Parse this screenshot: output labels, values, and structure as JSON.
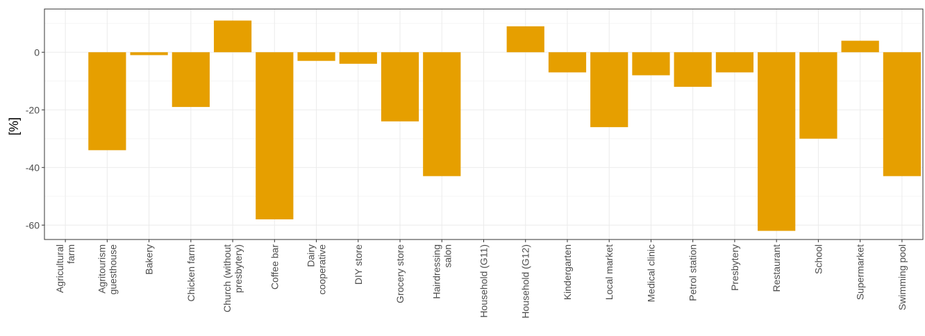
{
  "chart_data": {
    "type": "bar",
    "title": "",
    "xlabel": "",
    "ylabel": "[%]",
    "ylim": [
      -65,
      15
    ],
    "yticks": [
      0,
      -20,
      -40,
      -60
    ],
    "ytick_labels": [
      "0",
      "-20",
      "-40",
      "-60"
    ],
    "grid": true,
    "legend": "none",
    "colors": {
      "bar": "#E69F00",
      "panel_border": "#333333",
      "grid_major": "#ebebeb",
      "grid_minor": "#f5f5f5",
      "tick_text": "#4d4d4d"
    },
    "categories": [
      [
        "Agricultural",
        "farm"
      ],
      [
        "Agritourism",
        "guesthouse"
      ],
      [
        "Bakery"
      ],
      [
        "Chicken farm"
      ],
      [
        "Church (without",
        "presbytery)"
      ],
      [
        "Coffee bar"
      ],
      [
        "Dairy",
        "cooperative"
      ],
      [
        "DIY store"
      ],
      [
        "Grocery store"
      ],
      [
        "Hairdressing",
        "salon"
      ],
      [
        "Household (G11)"
      ],
      [
        "Household (G12)"
      ],
      [
        "Kindergarten"
      ],
      [
        "Local market"
      ],
      [
        "Medical clinic"
      ],
      [
        "Petrol station"
      ],
      [
        "Presbytery"
      ],
      [
        "Restaurant"
      ],
      [
        "School"
      ],
      [
        "Supermarket"
      ],
      [
        "Swimming pool"
      ]
    ],
    "values": [
      0,
      -34,
      -1,
      -19,
      11,
      -58,
      -3,
      -4,
      -24,
      -43,
      0,
      9,
      -7,
      -26,
      -8,
      -12,
      -7,
      -62,
      -30,
      4,
      -43
    ]
  }
}
